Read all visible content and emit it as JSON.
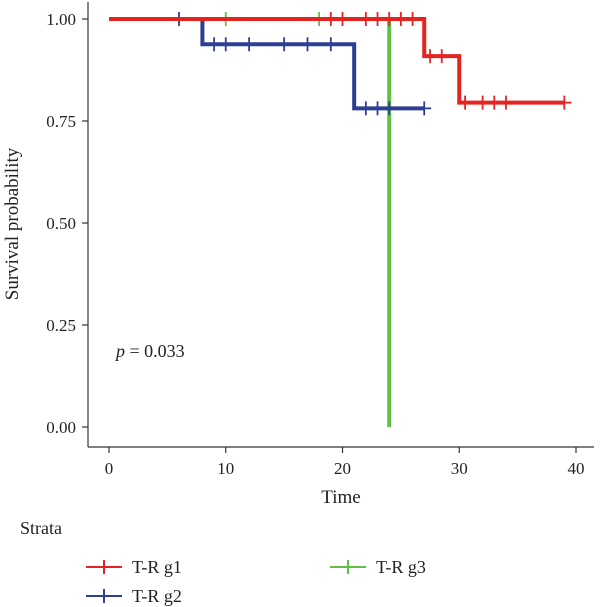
{
  "chart_data": {
    "type": "line",
    "subtype": "kaplan-meier",
    "xlabel": "Time",
    "ylabel": "Survival probability",
    "xlim": [
      0,
      40
    ],
    "ylim": [
      0,
      1
    ],
    "x_ticks": [
      0,
      10,
      20,
      30,
      40
    ],
    "y_ticks": [
      "0.00",
      "0.25",
      "0.50",
      "0.75",
      "1.00"
    ],
    "grid": false,
    "annotation": {
      "italic": "p",
      "text": " = 0.033"
    },
    "legend": {
      "title": "Strata",
      "placement": "bottom-left"
    },
    "series": [
      {
        "name": "T-R g1",
        "color": "#e52421",
        "steps": [
          [
            0,
            1.0
          ],
          [
            27,
            0.909
          ],
          [
            30,
            0.795
          ],
          [
            39,
            0.795
          ]
        ],
        "censor": [
          19,
          20,
          22,
          23,
          24,
          25,
          26,
          27.5,
          28.5,
          30.5,
          32,
          33,
          34,
          39
        ]
      },
      {
        "name": "T-R g2",
        "color": "#2e3f93",
        "steps": [
          [
            0,
            1.0
          ],
          [
            8,
            0.938
          ],
          [
            21,
            0.781
          ],
          [
            27,
            0.781
          ]
        ],
        "censor": [
          6,
          9,
          10,
          12,
          15,
          17,
          19,
          22,
          23,
          24,
          27
        ]
      },
      {
        "name": "T-R g3",
        "color": "#5fbf46",
        "steps": [
          [
            0,
            1.0
          ],
          [
            24,
            0.0
          ]
        ],
        "censor": [
          10,
          18
        ]
      }
    ]
  }
}
